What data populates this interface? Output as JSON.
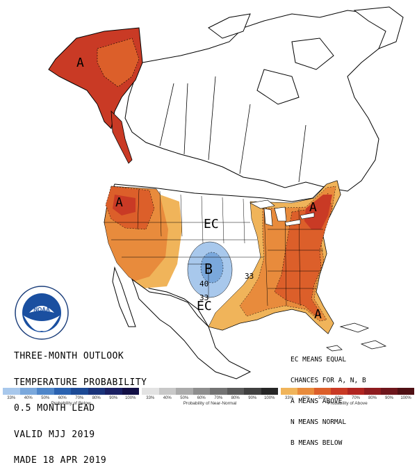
{
  "title_lines": [
    "THREE-MONTH OUTLOOK",
    "TEMPERATURE PROBABILITY",
    "0.5 MONTH LEAD",
    "VALID MJJ 2019",
    "MADE 18 APR 2019"
  ],
  "legend_key_lines": [
    "EC MEANS EQUAL",
    "CHANCES FOR A, N, B",
    "A MEANS ABOVE",
    "N MEANS NORMAL",
    "B MEANS BELOW"
  ],
  "map_labels": {
    "alaska_a": "A",
    "pacnw_a": "A",
    "northeast_a": "A",
    "florida_a": "A",
    "central_ec": "EC",
    "south_ec": "EC",
    "below_b": "B",
    "contour_40": "40",
    "contour_33_a": "33",
    "contour_33_b": "33"
  },
  "colors": {
    "above_33": "#f0b45a",
    "above_40": "#e88b3c",
    "above_50": "#dc5f2a",
    "above_60": "#c93a25",
    "below_33": "#a8c8ec",
    "below_40": "#7aa8dc",
    "ocean": "#ffffff",
    "border": "#000000"
  },
  "scales": [
    {
      "name": "below",
      "caption": "Probability of Below",
      "ticks": [
        "33%",
        "40%",
        "50%",
        "60%",
        "70%",
        "80%",
        "90%",
        "100%"
      ],
      "colors": [
        "#a8c8ec",
        "#7aa8dc",
        "#4f86c9",
        "#2a62b0",
        "#1c4a95",
        "#1a337a",
        "#1a1f62",
        "#120f45"
      ]
    },
    {
      "name": "near-normal",
      "caption": "Probability of Near-Normal",
      "ticks": [
        "33%",
        "40%",
        "50%",
        "60%",
        "70%",
        "80%",
        "90%",
        "100%"
      ],
      "colors": [
        "#e3e3e3",
        "#c8c8c8",
        "#ababab",
        "#8e8e8e",
        "#737373",
        "#5a5a5a",
        "#404040",
        "#262626"
      ]
    },
    {
      "name": "above",
      "caption": "Probability of Above",
      "ticks": [
        "33%",
        "40%",
        "50%",
        "60%",
        "70%",
        "80%",
        "90%",
        "100%"
      ],
      "colors": [
        "#f0b45a",
        "#e88b3c",
        "#dc5f2a",
        "#c93a25",
        "#b02521",
        "#8e1c1f",
        "#6e161c",
        "#4f1014"
      ]
    }
  ],
  "logo": {
    "text": "NOAA",
    "ring_text": "NATIONAL OCEANIC AND ATMOSPHERIC ADMINISTRATION",
    "ring_text_bottom": "U.S. DEPARTMENT OF COMMERCE"
  }
}
